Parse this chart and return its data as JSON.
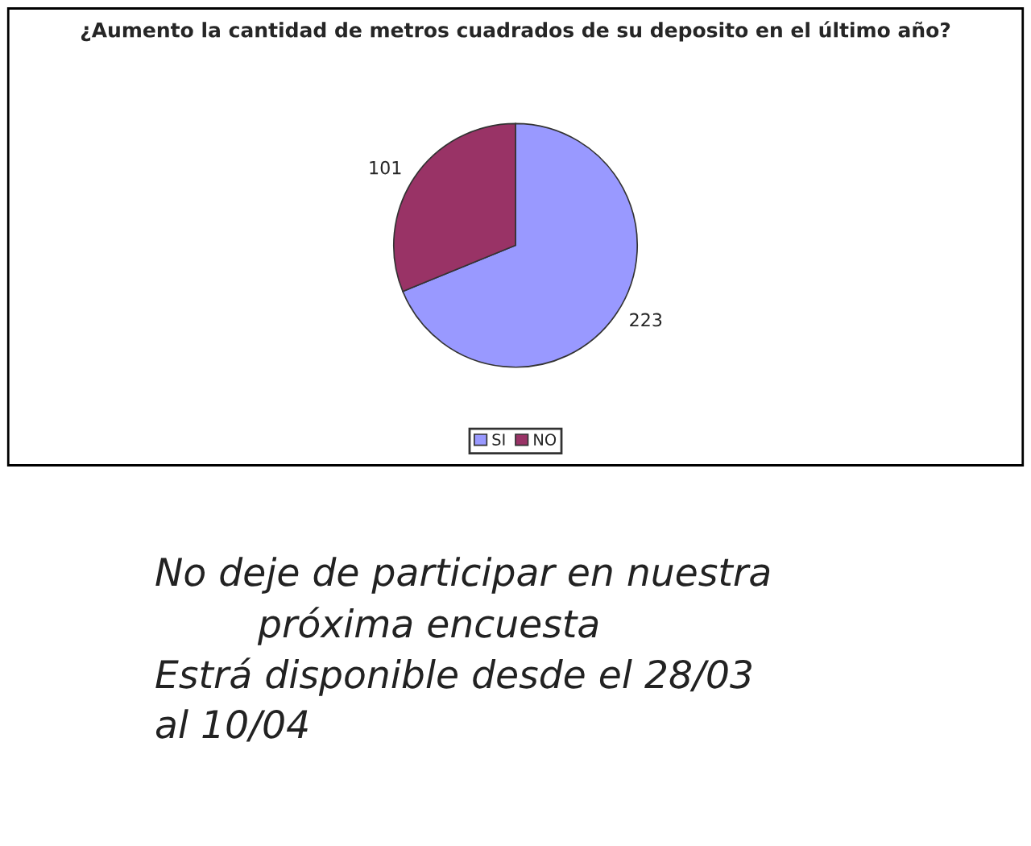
{
  "chart_data": {
    "type": "pie",
    "title": "¿Aumento la cantidad de metros cuadrados de su deposito en el último año?",
    "categories": [
      "SI",
      "NO"
    ],
    "values": [
      223,
      101
    ],
    "colors": [
      "#9999ff",
      "#993366"
    ],
    "data_labels": true,
    "legend": "bottom",
    "annotations": [
      "No deje de participar en nuestra",
      "próxima encuesta",
      "Estrá disponible desde el 28/03",
      "al 10/04"
    ]
  }
}
